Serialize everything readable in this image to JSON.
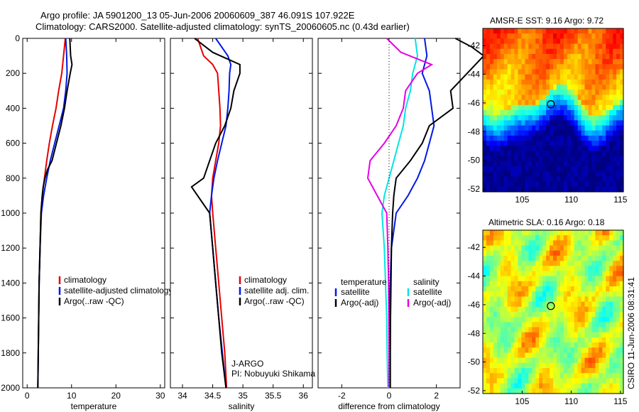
{
  "header": {
    "line1": "Argo profile: JA 5901200_13 05-Jun-2006 20060609_387 46.091S 107.922E",
    "line2": "Climatology: CARS2000. Satellite-adjusted climatology: synTS_20060605.nc (0.43d earlier)"
  },
  "colors": {
    "climatology": "#e60000",
    "satellite": "#0019e6",
    "argo": "#000000",
    "sat_diff_temp": "#00e5e5",
    "argo_diff_temp": "#e600e6"
  },
  "credits": {
    "program": "J-ARGO",
    "pi": "PI: Nobuyuki Shikama"
  },
  "timestamp": "CSIRO 11-Jun-2006 08:31:41",
  "sst_map": {
    "title": "AMSR-E SST: 9.16 Argo: 9.72",
    "colormap": "jet"
  },
  "sla_map": {
    "title": "Altimetric SLA: 0.16 Argo: 0.18",
    "colormap": "jet"
  },
  "chart_data": [
    {
      "type": "line",
      "name": "temperature-panel",
      "xlabel": "temperature",
      "xlim": [
        -1,
        31
      ],
      "xticks": [
        0,
        10,
        20,
        30
      ],
      "ylim": [
        2000,
        0
      ],
      "yticks": [
        0,
        200,
        400,
        600,
        800,
        1000,
        1200,
        1400,
        1600,
        1800,
        2000
      ],
      "legend": [
        "climatology",
        "satellite-adjusted climatology",
        "Argo(..raw -QC)"
      ],
      "series": [
        {
          "key": "clim",
          "depth": [
            0,
            100,
            200,
            300,
            400,
            500,
            600,
            700,
            800,
            900,
            1000,
            1200,
            1400,
            1600,
            1800,
            2000
          ],
          "values": [
            8.6,
            8.2,
            7.8,
            7.1,
            6.5,
            5.7,
            5.0,
            4.4,
            3.9,
            3.4,
            3.1,
            2.9,
            2.7,
            2.6,
            2.5,
            2.4
          ]
        },
        {
          "key": "sat",
          "depth": [
            0,
            100,
            200,
            300,
            400,
            500,
            600,
            700,
            800,
            900,
            1000,
            1200,
            1400,
            1600,
            1800,
            2000
          ],
          "values": [
            8.7,
            8.9,
            9.0,
            8.7,
            8.2,
            7.2,
            6.2,
            5.2,
            4.4,
            3.7,
            3.2,
            2.9,
            2.7,
            2.6,
            2.5,
            2.4
          ]
        },
        {
          "key": "argo",
          "depth": [
            0,
            100,
            150,
            200,
            300,
            400,
            500,
            600,
            700,
            750,
            800,
            850,
            900,
            1000,
            1200,
            1400,
            1600,
            1800,
            2000
          ],
          "values": [
            9.6,
            9.8,
            10.1,
            9.7,
            9.0,
            8.4,
            7.6,
            6.6,
            5.6,
            4.6,
            4.0,
            3.6,
            3.4,
            3.1,
            2.9,
            2.7,
            2.6,
            2.5,
            2.4
          ]
        }
      ]
    },
    {
      "type": "line",
      "name": "salinity-panel",
      "xlabel": "salinity",
      "xlim": [
        33.8,
        36.15
      ],
      "xticks": [
        34,
        34.5,
        35,
        35.5,
        36
      ],
      "ylim": [
        2000,
        0
      ],
      "legend": [
        "climatology",
        "satellite adj. clim.",
        "Argo(..raw -QC)"
      ],
      "series": [
        {
          "key": "clim",
          "depth": [
            0,
            100,
            150,
            200,
            300,
            400,
            500,
            600,
            700,
            800,
            900,
            1000,
            1200,
            1400,
            1600,
            1800,
            2000
          ],
          "values": [
            34.25,
            34.35,
            34.5,
            34.58,
            34.6,
            34.62,
            34.63,
            34.6,
            34.55,
            34.5,
            34.48,
            34.5,
            34.55,
            34.6,
            34.65,
            34.7,
            34.73
          ]
        },
        {
          "key": "sat",
          "depth": [
            0,
            100,
            150,
            200,
            300,
            400,
            500,
            600,
            700,
            800,
            900,
            1000,
            1200,
            1400,
            1600,
            1800,
            2000
          ],
          "values": [
            34.55,
            34.75,
            34.8,
            34.78,
            34.77,
            34.75,
            34.72,
            34.65,
            34.58,
            34.52,
            34.48,
            34.45,
            34.5,
            34.55,
            34.6,
            34.66,
            34.72
          ]
        },
        {
          "key": "argo",
          "depth": [
            0,
            80,
            150,
            200,
            300,
            400,
            500,
            600,
            700,
            800,
            850,
            900,
            1000,
            1200,
            1400,
            1600,
            1800,
            2000
          ],
          "values": [
            34.2,
            34.5,
            34.95,
            34.95,
            34.85,
            34.8,
            34.7,
            34.55,
            34.45,
            34.35,
            34.15,
            34.25,
            34.45,
            34.5,
            34.55,
            34.6,
            34.65,
            34.72
          ]
        }
      ]
    },
    {
      "type": "line",
      "name": "difference-panel",
      "xlabel": "difference from climatology",
      "xlim": [
        -3,
        3
      ],
      "xticks": [
        -2,
        0,
        2
      ],
      "ylim": [
        2000,
        0
      ],
      "legend_groups": [
        {
          "title": "temperature",
          "entries": [
            "satellite",
            "Argo(-adj)"
          ]
        },
        {
          "title": "salinity",
          "entries": [
            "satellite",
            "Argo(-adj)"
          ]
        }
      ],
      "series": [
        {
          "key": "sat_temp",
          "depth": [
            0,
            100,
            200,
            300,
            400,
            500,
            600,
            700,
            800,
            900,
            1000,
            1200,
            1400,
            1600,
            1800,
            2000
          ],
          "values": [
            1.5,
            1.6,
            1.4,
            1.7,
            1.8,
            1.9,
            1.7,
            1.5,
            1.2,
            0.8,
            0.3,
            0.1,
            0.05,
            0.02,
            0.02,
            0.02
          ]
        },
        {
          "key": "argo_temp",
          "depth": [
            0,
            50,
            100,
            200,
            300,
            400,
            500,
            600,
            700,
            800,
            850,
            900,
            1000,
            1200,
            1400,
            1600,
            1800,
            2000
          ],
          "values": [
            2.8,
            3.5,
            4.0,
            3.3,
            2.6,
            2.7,
            1.7,
            1.4,
            0.9,
            0.3,
            0.25,
            0.2,
            0.15,
            0.1,
            0.08,
            0.06,
            0.05,
            0.05
          ]
        },
        {
          "key": "sat_sal",
          "depth": [
            0,
            100,
            200,
            300,
            400,
            500,
            600,
            700,
            800,
            900,
            1000,
            1200,
            1400,
            1600,
            1800,
            2000
          ],
          "values": [
            1.1,
            1.2,
            1.0,
            0.9,
            0.7,
            0.6,
            0.4,
            0.2,
            0.0,
            -0.2,
            -0.3,
            -0.2,
            -0.15,
            -0.1,
            -0.08,
            -0.05
          ]
        },
        {
          "key": "argo_sal",
          "depth": [
            0,
            80,
            150,
            200,
            300,
            400,
            500,
            600,
            700,
            800,
            850,
            900,
            1000,
            1200,
            1400,
            1600,
            1800,
            2000
          ],
          "values": [
            -0.1,
            0.5,
            1.8,
            1.2,
            0.7,
            0.6,
            0.3,
            -0.2,
            -0.8,
            -0.9,
            -0.7,
            -0.5,
            -0.1,
            -0.05,
            -0.02,
            -0.01,
            0.0,
            0.0
          ]
        }
      ]
    },
    {
      "type": "heatmap",
      "name": "sst-map",
      "xlim": [
        101,
        115.3
      ],
      "xticks": [
        105,
        110,
        115
      ],
      "ylim": [
        -52.2,
        -40.8
      ],
      "yticks": [
        -42,
        -44,
        -46,
        -48,
        -50,
        -52
      ],
      "argo_position": [
        107.922,
        -46.091
      ]
    },
    {
      "type": "heatmap",
      "name": "sla-map",
      "xlim": [
        101,
        115.3
      ],
      "xticks": [
        105,
        110,
        115
      ],
      "ylim": [
        -52.2,
        -40.8
      ],
      "yticks": [
        -42,
        -44,
        -46,
        -48,
        -50,
        -52
      ],
      "argo_position": [
        107.922,
        -46.091
      ]
    }
  ]
}
